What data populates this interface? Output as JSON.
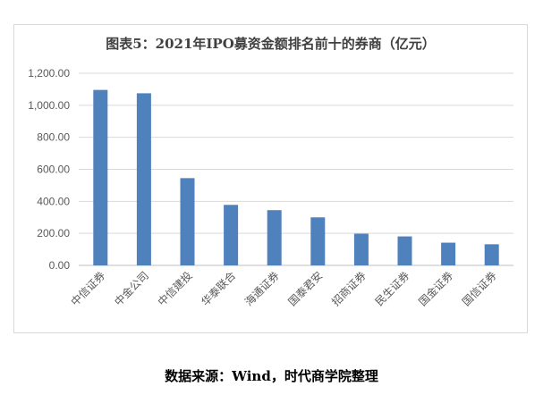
{
  "chart_data": {
    "type": "bar",
    "title": "图表5：2021年IPO募资金额排名前十的券商（亿元）",
    "categories": [
      "中信证券",
      "中金公司",
      "中信建投",
      "华泰联合",
      "海通证券",
      "国泰君安",
      "招商证券",
      "民生证券",
      "国金证券",
      "国信证券"
    ],
    "values": [
      1096,
      1075,
      545,
      378,
      345,
      300,
      198,
      181,
      142,
      132
    ],
    "ylim": [
      0,
      1200
    ],
    "yticks": [
      0,
      200,
      400,
      600,
      800,
      1000,
      1200
    ],
    "ytick_labels": [
      "0.00",
      "200.00",
      "400.00",
      "600.00",
      "800.00",
      "1,000.00",
      "1,200.00"
    ],
    "xlabel": "",
    "ylabel": "",
    "grid": true,
    "bar_color": "#4f81bd"
  },
  "caption": "数据来源：Wind，时代商学院整理"
}
